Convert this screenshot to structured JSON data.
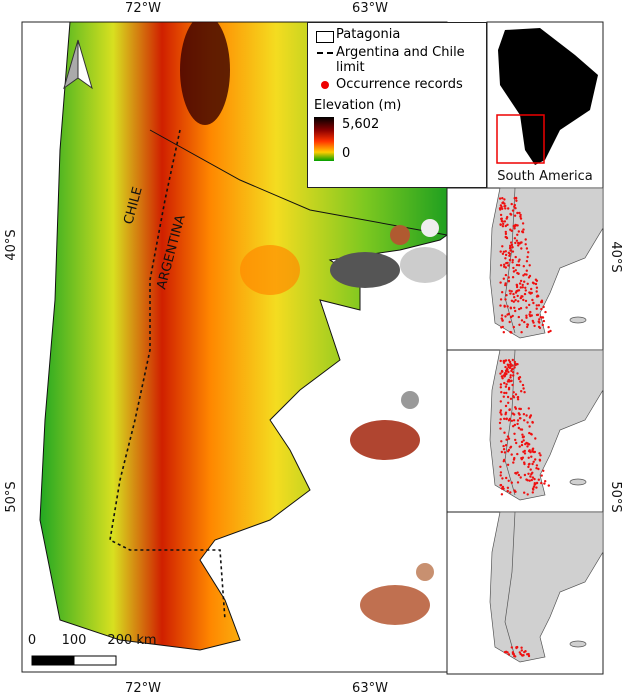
{
  "graticule": {
    "top": [
      "72°W",
      "63°W"
    ],
    "bottom": [
      "72°W",
      "63°W"
    ],
    "left": [
      "40°S",
      "50°S"
    ],
    "right": [
      "40°S",
      "50°S"
    ]
  },
  "legend": {
    "items": [
      "Patagonia",
      "Argentina and Chile limit",
      "Occurrence records"
    ],
    "elevation_title": "Elevation (m)",
    "elevation_max": "5,602",
    "elevation_min": "0"
  },
  "inset": {
    "label": "South America"
  },
  "map_labels": [
    "CHILE",
    "ARGENTINA"
  ],
  "scale_bar": {
    "labels": [
      "0",
      "100",
      "200 km"
    ]
  }
}
